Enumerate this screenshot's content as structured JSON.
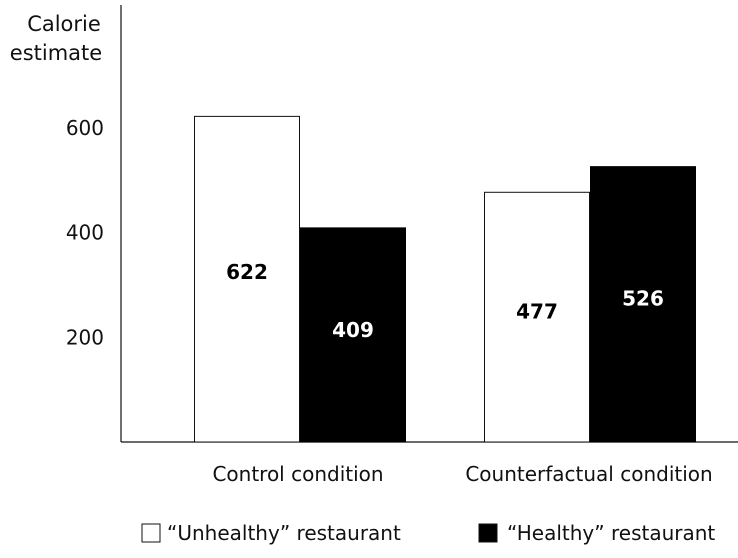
{
  "chart_data": {
    "type": "bar",
    "title": "",
    "ylabel": [
      "Calorie",
      "estimate"
    ],
    "xlabel": "",
    "categories": [
      "Control condition",
      "Counterfactual condition"
    ],
    "series": [
      {
        "name": "“Unhealthy” restaurant",
        "values": [
          622,
          477
        ],
        "fill": "#ffffff",
        "stroke": "#111111",
        "label_color": "#000000"
      },
      {
        "name": "“Healthy” restaurant",
        "values": [
          409,
          526
        ],
        "fill": "#000000",
        "stroke": "#000000",
        "label_color": "#ffffff"
      }
    ],
    "yticks": [
      200,
      400,
      600
    ],
    "ylim": [
      0,
      850
    ],
    "grid": false,
    "legend": "bottom"
  }
}
